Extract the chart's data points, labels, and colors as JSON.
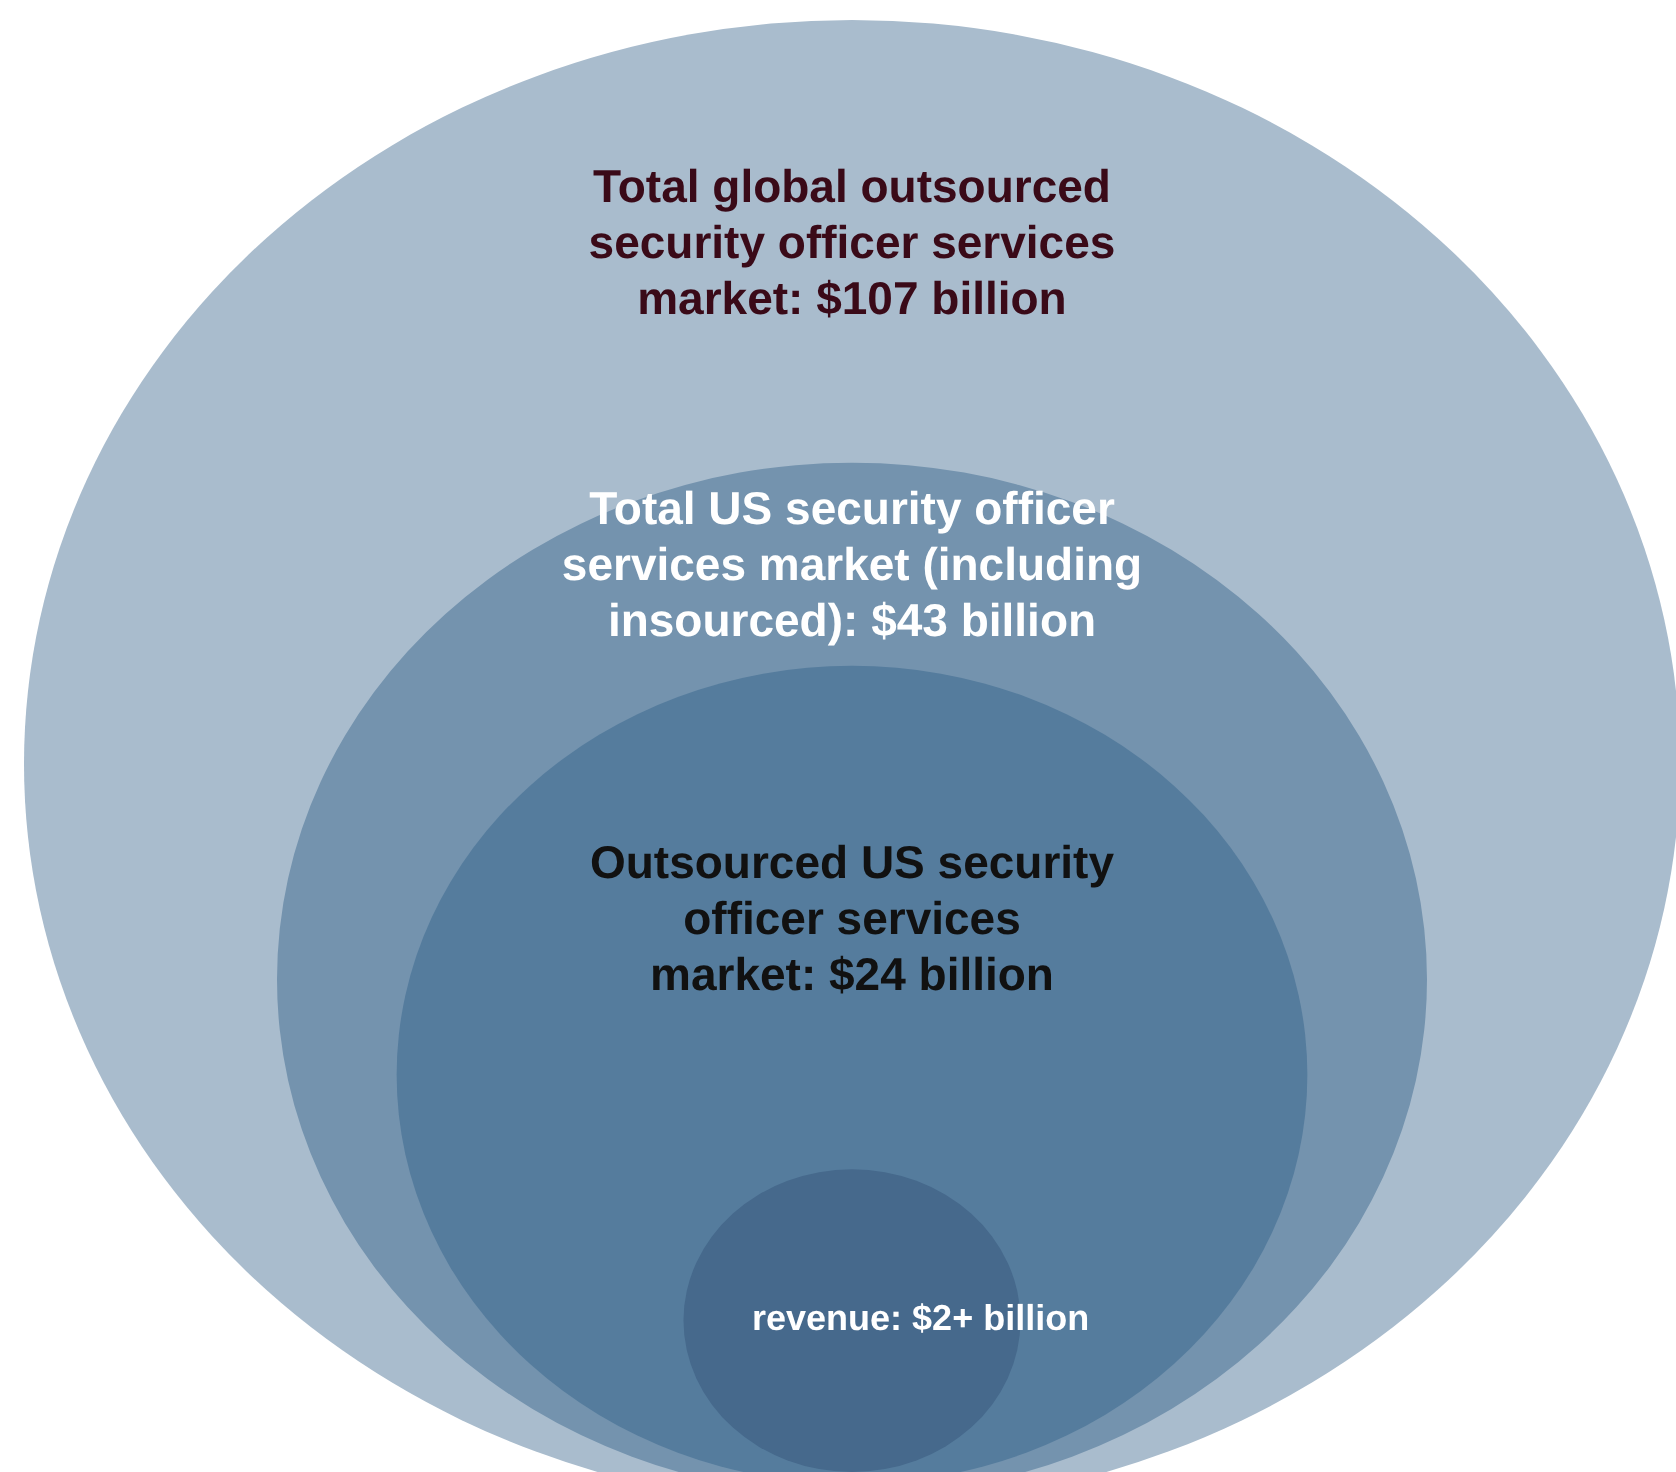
{
  "chart_data": {
    "type": "other",
    "categories": [
      "Total global outsourced security officer services market",
      "Total US security officer services market (including insourced)",
      "Outsourced US security officer services market",
      "revenue"
    ],
    "values": [
      107,
      43,
      24,
      2
    ],
    "value_labels": [
      ": $107 billion",
      ": $43 billion",
      ": $24 billion",
      ": $2+ billion"
    ],
    "colors": [
      "#a9bccd",
      "#7493ae",
      "#557c9d",
      "#46698c"
    ]
  }
}
